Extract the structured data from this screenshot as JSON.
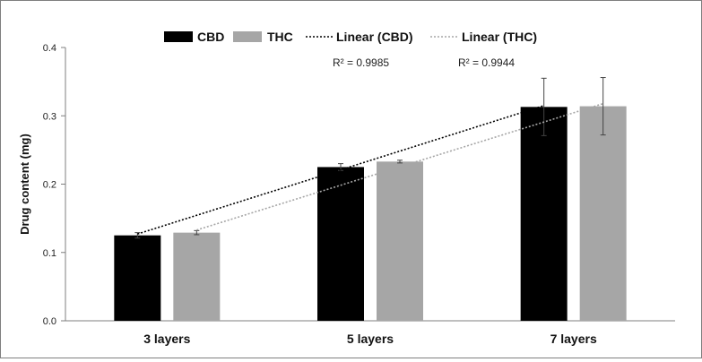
{
  "chart_data": {
    "type": "bar",
    "ylabel": "Drug content (mg)",
    "xlabel": "",
    "ylim": [
      0,
      0.4
    ],
    "yticks": [
      "0.0",
      "0.1",
      "0.2",
      "0.3",
      "0.4"
    ],
    "categories": [
      "3 layers",
      "5 layers",
      "7 layers"
    ],
    "series": [
      {
        "name": "CBD",
        "values": [
          0.125,
          0.225,
          0.313
        ],
        "errors": [
          0.004,
          0.005,
          0.042
        ],
        "color": "#000000"
      },
      {
        "name": "THC",
        "values": [
          0.129,
          0.233,
          0.314
        ],
        "errors": [
          0.003,
          0.002,
          0.042
        ],
        "color": "#a6a6a6"
      }
    ],
    "trendlines": [
      {
        "name": "Linear (CBD)",
        "series": "CBD",
        "r2_label": "R² = 0.9985",
        "color": "#000000"
      },
      {
        "name": "Linear (THC)",
        "series": "THC",
        "r2_label": "R² = 0.9944",
        "color": "#a6a6a6"
      }
    ],
    "legend_position": "top",
    "grid": false
  }
}
